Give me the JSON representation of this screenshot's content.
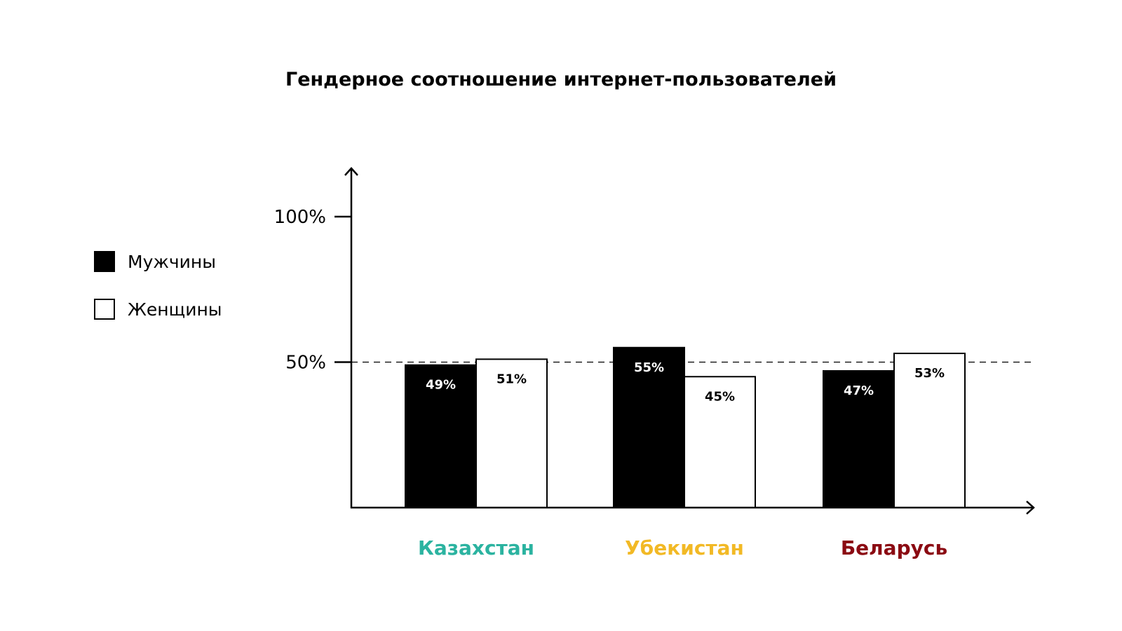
{
  "chart_data": {
    "type": "bar",
    "title": "Гендерное соотношение интернет-пользователей",
    "categories": [
      "Казахстан",
      "Убекистан",
      "Беларусь"
    ],
    "category_colors": [
      "#2bb3a0",
      "#f2b925",
      "#8b0a12"
    ],
    "series": [
      {
        "name": "Мужчины",
        "color": "#000000",
        "values": [
          49,
          55,
          47
        ],
        "labels": [
          "49%",
          "55%",
          "47%"
        ]
      },
      {
        "name": "Женщины",
        "color": "#ffffff",
        "values": [
          51,
          45,
          53
        ],
        "labels": [
          "51%",
          "45%",
          "53%"
        ]
      }
    ],
    "yticks": [
      {
        "value": 50,
        "label": "50%"
      },
      {
        "value": 100,
        "label": "100%"
      }
    ],
    "reference_line": 50,
    "ylim": [
      0,
      100
    ],
    "legend": "left",
    "xlabel": "",
    "ylabel": ""
  }
}
